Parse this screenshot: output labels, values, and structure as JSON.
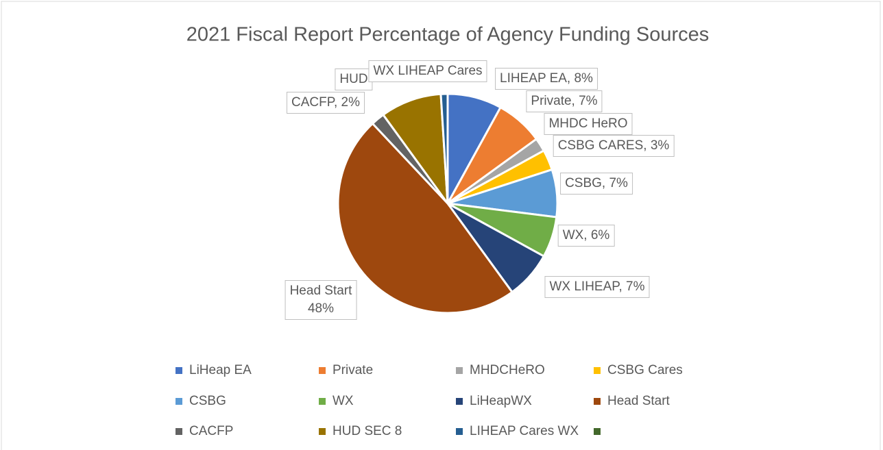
{
  "chart_data": {
    "type": "pie",
    "title": "2021 Fiscal Report Percentage of Agency Funding Sources",
    "categories": [
      "LiHeap EA",
      "Private",
      "MHDCHeRO",
      "CSBG Cares",
      "CSBG",
      "WX",
      "LiHeapWX",
      "Head Start",
      "CACFP",
      "HUD SEC 8",
      "LIHEAP Cares WX",
      null
    ],
    "values": [
      8,
      7,
      2,
      3,
      7,
      6,
      7,
      48,
      2,
      9,
      1,
      0
    ],
    "value_labels": [
      "LIHEAP EA, 8%",
      "Private, 7%",
      "MHDC HeRO",
      "CSBG CARES, 3%",
      "CSBG, 7%",
      "WX, 6%",
      "WX LIHEAP, 7%",
      "Head Start\n48%",
      "CACFP, 2%",
      "HUD",
      "WX LIHEAP Cares",
      null
    ],
    "colors": [
      "#4472c4",
      "#ed7d31",
      "#a5a5a5",
      "#ffc000",
      "#5b9bd5",
      "#70ad47",
      "#264478",
      "#9e480e",
      "#636363",
      "#997300",
      "#255e91",
      "#43682b"
    ],
    "legend": "bottom"
  }
}
